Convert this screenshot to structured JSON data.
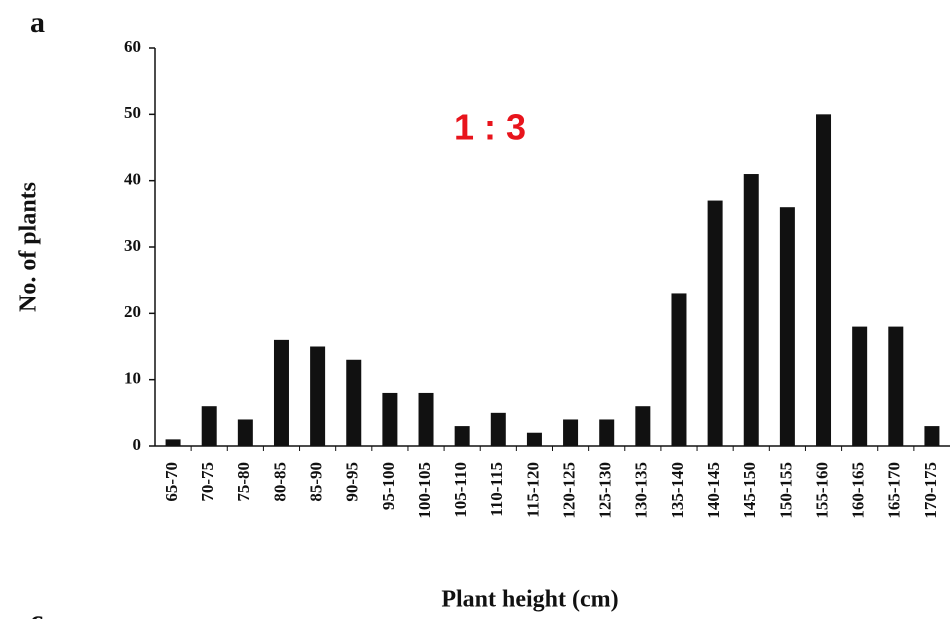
{
  "chart_data": {
    "type": "bar",
    "panel_labels": [
      "a",
      "c"
    ],
    "annotation": "1 : 3",
    "annotation_color": "#e8141c",
    "x_label": "Plant height (cm)",
    "y_label": "No. of plants",
    "categories": [
      "65-70",
      "70-75",
      "75-80",
      "80-85",
      "85-90",
      "90-95",
      "95-100",
      "100-105",
      "105-110",
      "110-115",
      "115-120",
      "120-125",
      "125-130",
      "130-135",
      "135-140",
      "140-145",
      "145-150",
      "150-155",
      "155-160",
      "160-165",
      "165-170",
      "170-175"
    ],
    "values": [
      1,
      6,
      4,
      16,
      15,
      13,
      8,
      8,
      3,
      5,
      2,
      4,
      4,
      6,
      23,
      37,
      41,
      36,
      50,
      18,
      18,
      3
    ],
    "color": "#111111",
    "ylim": [
      0,
      60
    ],
    "yticks": [
      0,
      10,
      20,
      30,
      40,
      50,
      60
    ],
    "grid": false
  }
}
